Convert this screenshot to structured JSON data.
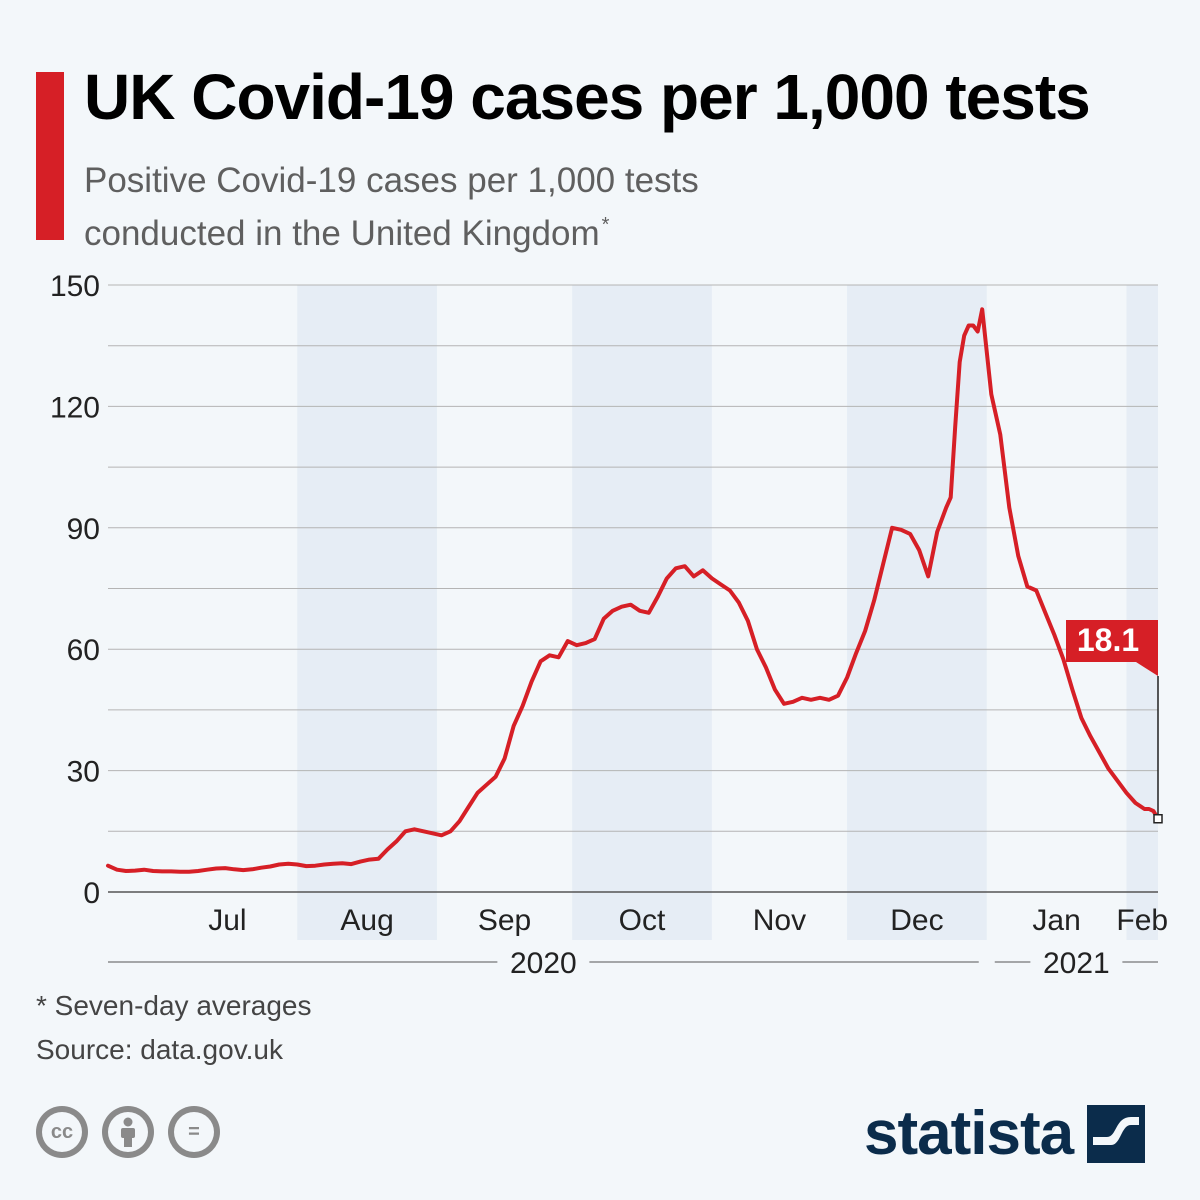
{
  "header": {
    "title": "UK Covid-19 cases per 1,000 tests",
    "subtitle": "Positive Covid-19 cases per 1,000 tests conducted in the United Kingdom",
    "subtitle_marker": "*"
  },
  "colors": {
    "accent": "#d61f26",
    "line": "#d61f26",
    "band": "#e6edf5",
    "grid": "#b4b4b4",
    "brand": "#0b2c4b"
  },
  "chart_data": {
    "type": "line",
    "title": "UK Covid-19 cases per 1,000 tests",
    "xlabel": "",
    "ylabel": "",
    "ylim": [
      0,
      150
    ],
    "yticks": [
      0,
      30,
      60,
      90,
      120,
      150
    ],
    "x_unit": "days since 2020-06-20",
    "xlim": [
      0,
      233
    ],
    "months": [
      {
        "label": "Jul",
        "start": 11,
        "end": 42,
        "shaded": false
      },
      {
        "label": "Aug",
        "start": 42,
        "end": 73,
        "shaded": true
      },
      {
        "label": "Sep",
        "start": 73,
        "end": 103,
        "shaded": false
      },
      {
        "label": "Oct",
        "start": 103,
        "end": 134,
        "shaded": true
      },
      {
        "label": "Nov",
        "start": 134,
        "end": 164,
        "shaded": false
      },
      {
        "label": "Dec",
        "start": 164,
        "end": 195,
        "shaded": true
      },
      {
        "label": "Jan",
        "start": 195,
        "end": 226,
        "shaded": false
      },
      {
        "label": "Feb",
        "start": 226,
        "end": 233,
        "shaded": true
      }
    ],
    "years": [
      {
        "label": "2020",
        "start": 0,
        "end": 195
      },
      {
        "label": "2021",
        "start": 195,
        "end": 233
      }
    ],
    "series": [
      {
        "name": "Positive cases per 1,000 tests (7-day average)",
        "x": [
          0,
          2,
          4,
          6,
          8,
          10,
          12,
          14,
          16,
          18,
          20,
          22,
          24,
          26,
          28,
          30,
          32,
          34,
          36,
          38,
          40,
          42,
          44,
          46,
          48,
          50,
          52,
          54,
          56,
          58,
          60,
          62,
          64,
          66,
          68,
          70,
          72,
          74,
          76,
          78,
          80,
          82,
          84,
          86,
          88,
          90,
          92,
          94,
          96,
          98,
          100,
          102,
          104,
          106,
          108,
          110,
          112,
          114,
          116,
          118,
          120,
          122,
          124,
          126,
          128,
          130,
          132,
          134,
          136,
          138,
          140,
          142,
          144,
          146,
          148,
          150,
          152,
          154,
          156,
          158,
          160,
          162,
          164,
          166,
          168,
          170,
          172,
          174,
          176,
          178,
          180,
          182,
          184,
          186,
          187,
          188,
          189,
          190,
          191,
          192,
          193,
          194,
          196,
          198,
          200,
          202,
          204,
          206,
          208,
          210,
          212,
          214,
          216,
          218,
          220,
          222,
          224,
          226,
          228,
          230,
          231,
          232,
          233
        ],
        "y": [
          6.5,
          5.5,
          5.2,
          5.3,
          5.5,
          5.2,
          5.1,
          5.1,
          5.0,
          5.0,
          5.2,
          5.5,
          5.8,
          5.9,
          5.6,
          5.4,
          5.6,
          6.0,
          6.3,
          6.8,
          7.0,
          6.8,
          6.4,
          6.5,
          6.8,
          7.0,
          7.1,
          6.9,
          7.5,
          8.0,
          8.2,
          10.5,
          12.5,
          15.0,
          15.5,
          15.0,
          14.5,
          14.0,
          15.0,
          17.5,
          21.0,
          24.5,
          26.5,
          28.5,
          33.0,
          41.0,
          46.0,
          52.0,
          57.0,
          58.5,
          58.0,
          62.0,
          61.0,
          61.5,
          62.5,
          67.5,
          69.5,
          70.5,
          71.0,
          69.5,
          69.0,
          73.0,
          77.5,
          80.0,
          80.5,
          78.0,
          79.5,
          77.5,
          76.0,
          74.5,
          71.5,
          67.0,
          60.0,
          55.5,
          50.0,
          46.5,
          47.0,
          48.0,
          47.5,
          48.0,
          47.5,
          48.5,
          53.0,
          59.0,
          64.5,
          72.0,
          81.0,
          90.0,
          89.5,
          88.5,
          84.5,
          78.0,
          89.0,
          95.0,
          97.5,
          115.0,
          131.0,
          137.5,
          140.0,
          140.0,
          138.5,
          144.0,
          123.0,
          113.0,
          95.0,
          83.0,
          75.5,
          74.5,
          69.0,
          63.5,
          57.5,
          50.0,
          43.0,
          38.5,
          34.5,
          30.5,
          27.5,
          24.5,
          22.0,
          20.5,
          20.5,
          20.0,
          18.1
        ]
      }
    ],
    "callout": {
      "label": "18.1",
      "x": 233,
      "value": 18.1
    }
  },
  "notes": {
    "footnote": "* Seven-day averages",
    "source": "Source: data.gov.uk"
  },
  "license_icons": [
    {
      "icon": "cc-icon",
      "glyph": "cc"
    },
    {
      "icon": "cc-attribution-icon",
      "glyph": ""
    },
    {
      "icon": "cc-noderivatives-icon",
      "glyph": "="
    }
  ],
  "brand": {
    "name": "statista"
  }
}
